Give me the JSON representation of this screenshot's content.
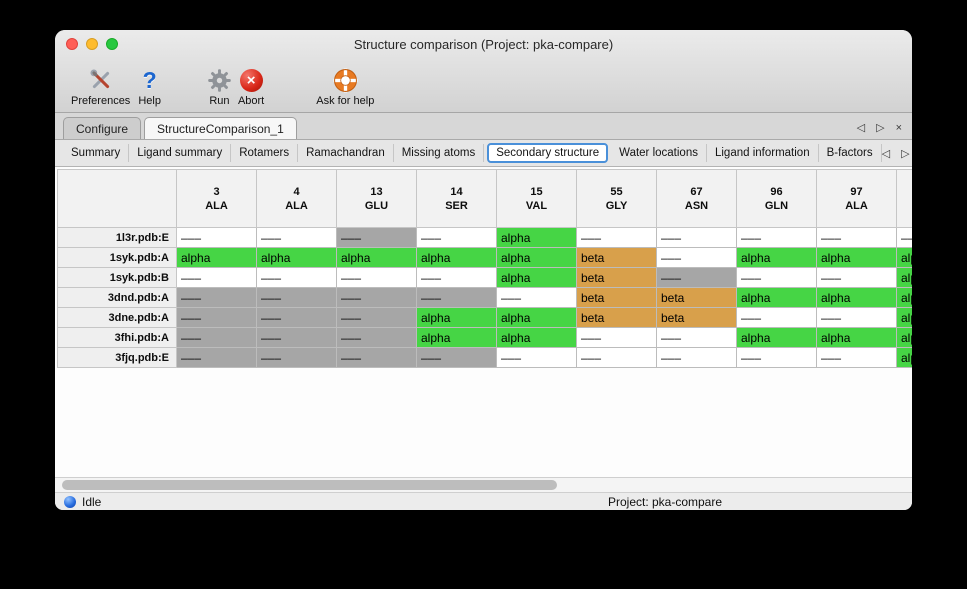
{
  "window": {
    "title": "Structure comparison (Project: pka-compare)"
  },
  "toolbar": {
    "items": [
      {
        "label": "Preferences",
        "icon": "tools-icon"
      },
      {
        "label": "Help",
        "icon": "question-mark-icon"
      },
      {
        "label": "Run",
        "icon": "gear-icon"
      },
      {
        "label": "Abort",
        "icon": "abort-icon"
      },
      {
        "label": "Ask for help",
        "icon": "lifebuoy-icon"
      }
    ],
    "abort_glyph": "×"
  },
  "tabs": {
    "primary": [
      {
        "label": "Configure",
        "active": false
      },
      {
        "label": "StructureComparison_1",
        "active": true
      }
    ],
    "secondary": [
      {
        "label": "Summary",
        "active": false
      },
      {
        "label": "Ligand summary",
        "active": false
      },
      {
        "label": "Rotamers",
        "active": false
      },
      {
        "label": "Ramachandran",
        "active": false
      },
      {
        "label": "Missing atoms",
        "active": false
      },
      {
        "label": "Secondary structure",
        "active": true
      },
      {
        "label": "Water locations",
        "active": false
      },
      {
        "label": "Ligand information",
        "active": false
      },
      {
        "label": "B-factors",
        "active": false
      }
    ],
    "controls": {
      "left": "◁",
      "right": "▷",
      "close": "×"
    }
  },
  "table": {
    "columns": [
      {
        "num": "3",
        "res": "ALA"
      },
      {
        "num": "4",
        "res": "ALA"
      },
      {
        "num": "13",
        "res": "GLU"
      },
      {
        "num": "14",
        "res": "SER"
      },
      {
        "num": "15",
        "res": "VAL"
      },
      {
        "num": "55",
        "res": "GLY"
      },
      {
        "num": "67",
        "res": "ASN"
      },
      {
        "num": "96",
        "res": "GLN"
      },
      {
        "num": "97",
        "res": "ALA"
      },
      {
        "num": "",
        "res": ""
      }
    ],
    "rows": [
      {
        "label": "1l3r.pdb:E",
        "cells": [
          {
            "text": "–––",
            "bg": "blank"
          },
          {
            "text": "–––",
            "bg": "blank"
          },
          {
            "text": "–––",
            "bg": "missing"
          },
          {
            "text": "–––",
            "bg": "blank"
          },
          {
            "text": "alpha",
            "bg": "alpha"
          },
          {
            "text": "–––",
            "bg": "blank"
          },
          {
            "text": "–––",
            "bg": "blank"
          },
          {
            "text": "–––",
            "bg": "blank"
          },
          {
            "text": "–––",
            "bg": "blank"
          },
          {
            "text": "–––",
            "bg": "blank"
          }
        ]
      },
      {
        "label": "1syk.pdb:A",
        "cells": [
          {
            "text": "alpha",
            "bg": "alpha"
          },
          {
            "text": "alpha",
            "bg": "alpha"
          },
          {
            "text": "alpha",
            "bg": "alpha"
          },
          {
            "text": "alpha",
            "bg": "alpha"
          },
          {
            "text": "alpha",
            "bg": "alpha"
          },
          {
            "text": "beta",
            "bg": "beta"
          },
          {
            "text": "–––",
            "bg": "blank"
          },
          {
            "text": "alpha",
            "bg": "alpha"
          },
          {
            "text": "alpha",
            "bg": "alpha"
          },
          {
            "text": "alpha",
            "bg": "alpha"
          }
        ]
      },
      {
        "label": "1syk.pdb:B",
        "cells": [
          {
            "text": "–––",
            "bg": "blank"
          },
          {
            "text": "–––",
            "bg": "blank"
          },
          {
            "text": "–––",
            "bg": "blank"
          },
          {
            "text": "–––",
            "bg": "blank"
          },
          {
            "text": "alpha",
            "bg": "alpha"
          },
          {
            "text": "beta",
            "bg": "beta"
          },
          {
            "text": "–––",
            "bg": "missing"
          },
          {
            "text": "–––",
            "bg": "blank"
          },
          {
            "text": "–––",
            "bg": "blank"
          },
          {
            "text": "alpha",
            "bg": "alpha"
          }
        ]
      },
      {
        "label": "3dnd.pdb:A",
        "cells": [
          {
            "text": "–––",
            "bg": "missing"
          },
          {
            "text": "–––",
            "bg": "missing"
          },
          {
            "text": "–––",
            "bg": "missing"
          },
          {
            "text": "–––",
            "bg": "missing"
          },
          {
            "text": "–––",
            "bg": "blank"
          },
          {
            "text": "beta",
            "bg": "beta"
          },
          {
            "text": "beta",
            "bg": "beta"
          },
          {
            "text": "alpha",
            "bg": "alpha"
          },
          {
            "text": "alpha",
            "bg": "alpha"
          },
          {
            "text": "alpha",
            "bg": "alpha"
          }
        ]
      },
      {
        "label": "3dne.pdb:A",
        "cells": [
          {
            "text": "–––",
            "bg": "missing"
          },
          {
            "text": "–––",
            "bg": "missing"
          },
          {
            "text": "–––",
            "bg": "missing"
          },
          {
            "text": "alpha",
            "bg": "alpha"
          },
          {
            "text": "alpha",
            "bg": "alpha"
          },
          {
            "text": "beta",
            "bg": "beta"
          },
          {
            "text": "beta",
            "bg": "beta"
          },
          {
            "text": "–––",
            "bg": "blank"
          },
          {
            "text": "–––",
            "bg": "blank"
          },
          {
            "text": "alpha",
            "bg": "alpha"
          }
        ]
      },
      {
        "label": "3fhi.pdb:A",
        "cells": [
          {
            "text": "–––",
            "bg": "missing"
          },
          {
            "text": "–––",
            "bg": "missing"
          },
          {
            "text": "–––",
            "bg": "missing"
          },
          {
            "text": "alpha",
            "bg": "alpha"
          },
          {
            "text": "alpha",
            "bg": "alpha"
          },
          {
            "text": "–––",
            "bg": "blank"
          },
          {
            "text": "–––",
            "bg": "blank"
          },
          {
            "text": "alpha",
            "bg": "alpha"
          },
          {
            "text": "alpha",
            "bg": "alpha"
          },
          {
            "text": "alpha",
            "bg": "alpha"
          }
        ]
      },
      {
        "label": "3fjq.pdb:E",
        "cells": [
          {
            "text": "–––",
            "bg": "missing"
          },
          {
            "text": "–––",
            "bg": "missing"
          },
          {
            "text": "–––",
            "bg": "missing"
          },
          {
            "text": "–––",
            "bg": "missing"
          },
          {
            "text": "–––",
            "bg": "blank"
          },
          {
            "text": "–––",
            "bg": "blank"
          },
          {
            "text": "–––",
            "bg": "blank"
          },
          {
            "text": "–––",
            "bg": "blank"
          },
          {
            "text": "–––",
            "bg": "blank"
          },
          {
            "text": "alpha",
            "bg": "alpha"
          }
        ]
      }
    ]
  },
  "colors": {
    "alpha": "#46d545",
    "beta": "#d8a04b",
    "missing": "#a6a6a6",
    "blank": "#ffffff",
    "tab_focus": "#4a90d9"
  },
  "statusbar": {
    "status": "Idle",
    "project": "Project: pka-compare"
  }
}
